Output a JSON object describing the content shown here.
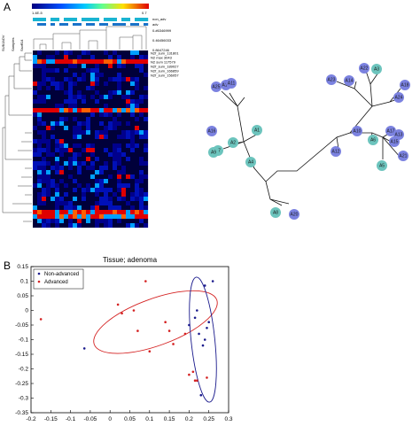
{
  "panels": {
    "a_label": "A",
    "b_label": "B"
  },
  "heatmap": {
    "colorbar_min": "1.4E-5",
    "colorbar_max": "0.7",
    "col_labels": [
      "non_adv",
      "adv"
    ],
    "sample_labels": [
      "0.#6346999",
      "0.46456033"
    ],
    "side_labels": [
      "SUBJADV",
      "Samples",
      "Ssoff14"
    ],
    "extra_label": "0.8647246",
    "rows": [
      {
        "label": "N2f_sum_131801",
        "cells": [
          0,
          0,
          0,
          0,
          0,
          0,
          0,
          0,
          0,
          0,
          0,
          0,
          0,
          0,
          0,
          0,
          0,
          0,
          0,
          0,
          0,
          0,
          0,
          0,
          0,
          0,
          0,
          0,
          0,
          0,
          0,
          0,
          0,
          0,
          0,
          0,
          0,
          0,
          0,
          0,
          0,
          0,
          0,
          0,
          0,
          0,
          0,
          0,
          0,
          0,
          0,
          0,
          0,
          0,
          0,
          0,
          0,
          0,
          0,
          0,
          0,
          0,
          0,
          0,
          0,
          0
        ]
      },
      {
        "label": "N2 max 3043",
        "cells": [
          0,
          0,
          0,
          0,
          0,
          0,
          0,
          0,
          0,
          0,
          0,
          0,
          0,
          0,
          0,
          0,
          0,
          0,
          0,
          0,
          0,
          0,
          0,
          0,
          0,
          0,
          0,
          0,
          0,
          0,
          0,
          0,
          0,
          0,
          0,
          0,
          0,
          0,
          0,
          0,
          0,
          0,
          0,
          0,
          0,
          0,
          0,
          0,
          0,
          0,
          0,
          0,
          0,
          0,
          0,
          0,
          0,
          0,
          0,
          0,
          0,
          0,
          0,
          0,
          0,
          0
        ]
      },
      {
        "label": "N2 sum 117579",
        "cells": [
          0,
          0,
          0,
          0,
          0,
          0,
          0,
          0,
          0,
          0,
          0,
          0,
          0,
          0,
          0,
          0,
          0,
          0,
          0,
          0,
          0,
          0,
          0,
          0,
          0,
          0,
          0,
          0,
          0,
          0,
          0,
          0,
          0,
          0,
          0,
          0,
          0,
          0,
          0,
          0,
          0,
          0,
          0,
          0,
          0,
          0,
          0,
          0,
          0,
          0,
          0,
          0,
          0,
          0,
          0,
          0,
          0,
          0,
          0,
          0,
          0,
          0,
          0,
          0,
          0,
          0
        ]
      },
      {
        "label": "N2f_sum_189027",
        "cells": [
          0,
          0,
          0,
          0,
          0,
          0,
          0,
          0,
          0,
          0,
          0,
          0,
          0,
          0,
          0,
          0,
          0,
          0,
          0,
          0,
          0,
          0,
          0,
          0,
          0,
          0,
          0,
          0,
          0,
          0,
          0,
          0,
          0,
          0,
          0,
          0,
          0,
          0,
          0,
          0,
          0,
          0,
          0,
          0,
          0,
          0,
          0,
          0,
          0,
          0,
          0,
          0,
          0,
          0,
          0,
          0,
          0,
          0,
          0,
          0,
          0,
          0,
          0,
          0,
          0,
          0
        ]
      },
      {
        "label": "N2f_sum_166859",
        "cells": [
          0,
          0,
          0,
          0,
          0,
          0,
          0,
          0,
          0,
          0,
          0,
          0,
          0,
          0,
          0,
          0,
          0,
          0,
          0,
          0,
          0,
          0,
          0,
          0,
          0,
          0,
          0,
          0,
          0,
          0,
          0,
          0,
          0,
          0,
          0,
          0,
          0,
          0,
          0,
          0,
          0,
          0,
          0,
          0,
          0,
          0,
          0,
          0,
          0,
          0,
          0,
          0,
          0,
          0,
          0,
          0,
          0,
          0,
          0,
          0,
          0,
          0,
          0,
          0,
          0,
          0
        ]
      },
      {
        "label": "N2f_sum_156057",
        "cells": [
          0,
          0,
          0,
          0,
          0,
          0,
          0,
          0,
          0,
          0,
          0,
          0,
          0,
          0,
          0,
          0,
          0,
          0,
          0,
          0,
          0,
          0,
          0,
          0,
          0,
          0,
          0,
          0,
          0,
          0,
          0,
          0,
          0,
          0,
          0,
          0,
          0,
          0,
          0,
          0,
          0,
          0,
          0,
          0,
          0,
          0,
          0,
          0,
          0,
          0,
          0,
          0,
          0,
          0,
          0,
          0,
          0,
          0,
          0,
          0,
          0,
          0,
          0,
          0,
          0,
          0
        ]
      }
    ]
  },
  "dendrogram": {
    "nodes": [
      {
        "name": "A19",
        "group": "advanced"
      },
      {
        "name": "A11",
        "group": "advanced"
      },
      {
        "name": "A25",
        "group": "advanced"
      },
      {
        "name": "A1",
        "group": "non-advanced"
      },
      {
        "name": "A16",
        "group": "advanced"
      },
      {
        "name": "A7",
        "group": "non-advanced"
      },
      {
        "name": "A9",
        "group": "non-advanced"
      },
      {
        "name": "A2",
        "group": "non-advanced"
      },
      {
        "name": "A4",
        "group": "non-advanced"
      },
      {
        "name": "A8",
        "group": "non-advanced"
      },
      {
        "name": "A20",
        "group": "advanced"
      },
      {
        "name": "A23",
        "group": "advanced"
      },
      {
        "name": "A14",
        "group": "advanced"
      },
      {
        "name": "A22",
        "group": "advanced"
      },
      {
        "name": "A3",
        "group": "non-advanced"
      },
      {
        "name": "A18",
        "group": "advanced"
      },
      {
        "name": "A24",
        "group": "advanced"
      },
      {
        "name": "A17",
        "group": "advanced"
      },
      {
        "name": "A13",
        "group": "advanced"
      },
      {
        "name": "A15",
        "group": "advanced"
      },
      {
        "name": "A21",
        "group": "advanced"
      },
      {
        "name": "A5",
        "group": "non-advanced"
      },
      {
        "name": "A6",
        "group": "non-advanced"
      },
      {
        "name": "A10",
        "group": "advanced"
      },
      {
        "name": "A12",
        "group": "advanced"
      }
    ],
    "colors": {
      "advanced": "#7b82e0",
      "non-advanced": "#6cc4bd"
    }
  },
  "chart_data": {
    "type": "scatter",
    "title": "Tissue; adenoma",
    "xlim": [
      -0.2,
      0.3
    ],
    "ylim": [
      -0.35,
      0.15
    ],
    "xticks": [
      "-0.2",
      "-0.15",
      "-0.1",
      "-0.05",
      "0",
      "0.05",
      "0.1",
      "0.15",
      "0.2",
      "0.25",
      "0.3"
    ],
    "yticks": [
      "0.15",
      "0.1",
      "0.05",
      "0",
      "-0.05",
      "-0.1",
      "-0.15",
      "-0.2",
      "-0.25",
      "-0.3",
      "-0.35"
    ],
    "legend_position": "top-left",
    "series": [
      {
        "name": "Non-advanced",
        "color": "#1a1a8c",
        "points": [
          [
            -0.065,
            -0.13
          ],
          [
            0.2,
            -0.05
          ],
          [
            0.215,
            -0.025
          ],
          [
            0.22,
            0.0
          ],
          [
            0.225,
            -0.08
          ],
          [
            0.24,
            -0.1
          ],
          [
            0.245,
            -0.06
          ],
          [
            0.235,
            -0.12
          ],
          [
            0.25,
            -0.04
          ],
          [
            0.23,
            -0.29
          ],
          [
            0.24,
            0.085
          ],
          [
            0.26,
            0.1
          ]
        ]
      },
      {
        "name": "Advanced",
        "color": "#d42020",
        "points": [
          [
            -0.175,
            -0.03
          ],
          [
            0.02,
            0.02
          ],
          [
            0.03,
            -0.01
          ],
          [
            0.06,
            0.0
          ],
          [
            0.09,
            0.1
          ],
          [
            0.1,
            -0.14
          ],
          [
            0.14,
            -0.04
          ],
          [
            0.15,
            -0.07
          ],
          [
            0.16,
            -0.115
          ],
          [
            0.19,
            -0.08
          ],
          [
            0.2,
            -0.22
          ],
          [
            0.215,
            -0.24
          ],
          [
            0.21,
            -0.21
          ],
          [
            0.22,
            -0.24
          ],
          [
            0.245,
            -0.23
          ],
          [
            0.07,
            -0.07
          ]
        ]
      }
    ],
    "ellipses": [
      {
        "series": "Advanced",
        "color": "#d42020",
        "cx": 0.115,
        "cy": -0.04,
        "rx": 0.165,
        "ry": 0.08,
        "angle_deg": 20
      },
      {
        "series": "Non-advanced",
        "color": "#1a1a8c",
        "cx": 0.235,
        "cy": -0.1,
        "rx": 0.03,
        "ry": 0.215,
        "angle_deg": 6
      }
    ]
  }
}
